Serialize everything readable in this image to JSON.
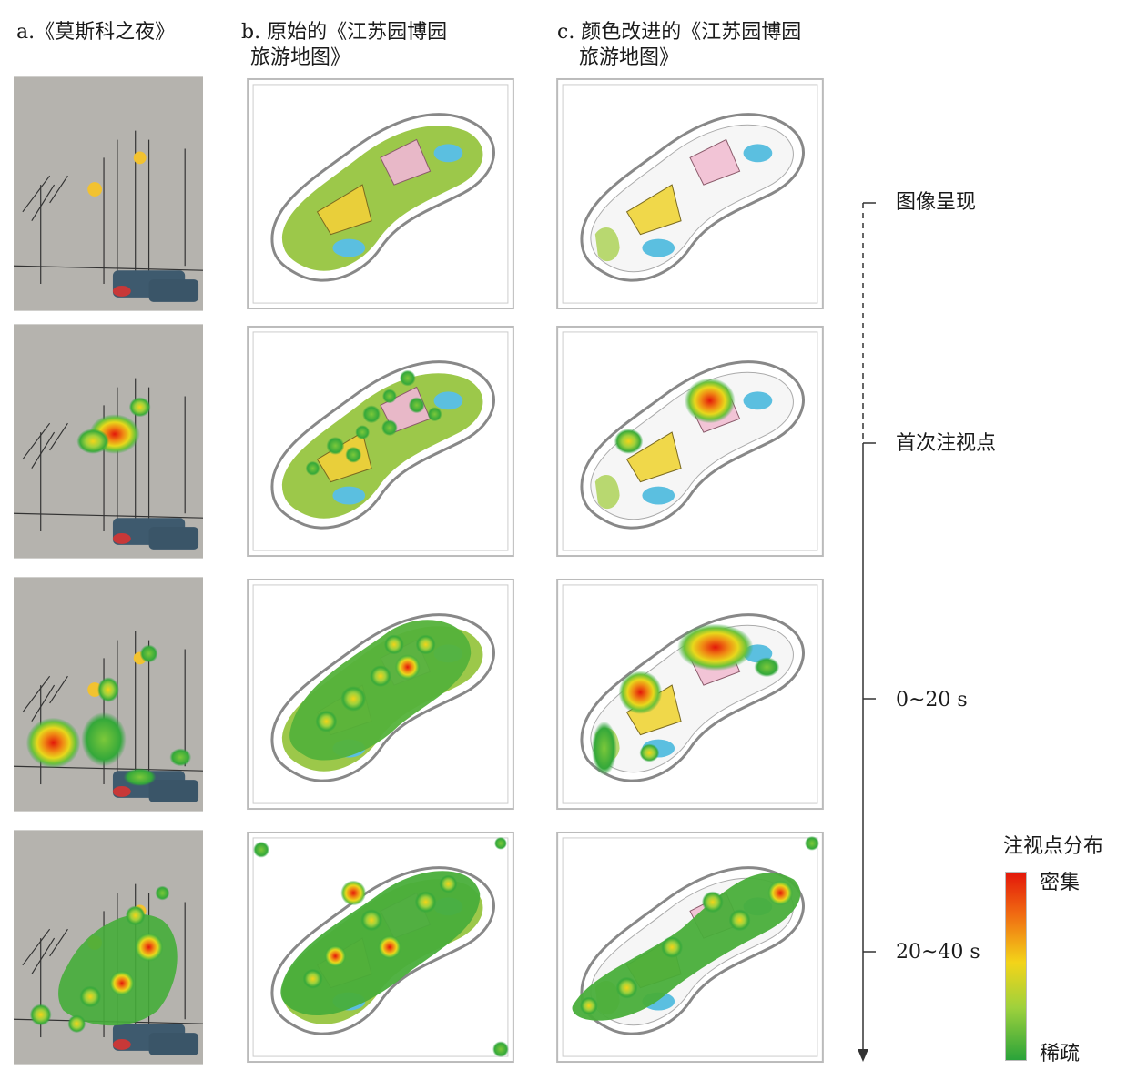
{
  "columns": {
    "a": {
      "title": "a.《莫斯科之夜》"
    },
    "b": {
      "title_line1": "b. 原始的《江苏园博园",
      "title_line2": "旅游地图》"
    },
    "c": {
      "title_line1": "c. 颜色改进的《江苏园博园",
      "title_line2": "旅游地图》"
    }
  },
  "timeline": {
    "stages": [
      "图像呈现",
      "首次注视点",
      "0~20 s",
      "20~40 s"
    ]
  },
  "legend": {
    "title": "注视点分布",
    "high_label": "密集",
    "low_label": "稀疏",
    "colors": [
      "#e3170a",
      "#f06a12",
      "#f3d419",
      "#9fd13c",
      "#2aa33a"
    ]
  }
}
